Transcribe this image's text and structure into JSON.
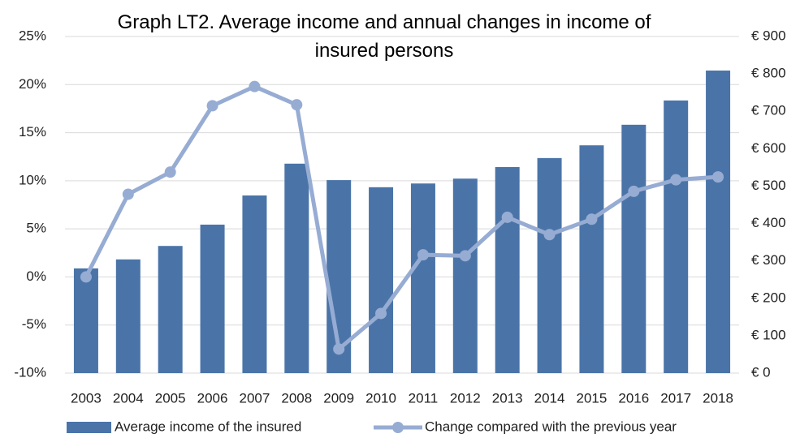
{
  "chart_data": {
    "type": "combo",
    "title": "Graph LT2. Average income and annual changes in income of insured persons",
    "categories": [
      "2003",
      "2004",
      "2005",
      "2006",
      "2007",
      "2008",
      "2009",
      "2010",
      "2011",
      "2012",
      "2013",
      "2014",
      "2015",
      "2016",
      "2017",
      "2018"
    ],
    "series": [
      {
        "name": "Average income of the insured",
        "type": "bar",
        "axis": "y2",
        "color": "#4a74a8",
        "values": [
          280,
          304,
          340,
          397,
          475,
          560,
          516,
          497,
          507,
          520,
          551,
          575,
          609,
          664,
          729,
          809
        ]
      },
      {
        "name": "Change compared with the previous year",
        "type": "line",
        "color": "#97acd3",
        "values": [
          0.0,
          8.6,
          10.9,
          17.8,
          19.8,
          17.9,
          -7.5,
          -3.8,
          2.3,
          2.2,
          6.2,
          4.4,
          6.0,
          8.9,
          10.1,
          10.4
        ]
      }
    ],
    "ylim": [
      -10,
      25
    ],
    "yticks": [
      {
        "value": -10,
        "label": "-10%"
      },
      {
        "value": -5,
        "label": "-5%"
      },
      {
        "value": 0,
        "label": "0%"
      },
      {
        "value": 5,
        "label": "5%"
      },
      {
        "value": 10,
        "label": "10%"
      },
      {
        "value": 15,
        "label": "15%"
      },
      {
        "value": 20,
        "label": "20%"
      },
      {
        "value": 25,
        "label": "25%"
      }
    ],
    "y2lim": [
      0,
      900
    ],
    "y2ticks": [
      {
        "value": 0,
        "label": "€ 0"
      },
      {
        "value": 100,
        "label": "€ 100"
      },
      {
        "value": 200,
        "label": "€ 200"
      },
      {
        "value": 300,
        "label": "€ 300"
      },
      {
        "value": 400,
        "label": "€ 400"
      },
      {
        "value": 500,
        "label": "€ 500"
      },
      {
        "value": 600,
        "label": "€ 600"
      },
      {
        "value": 700,
        "label": "€ 700"
      },
      {
        "value": 800,
        "label": "€ 800"
      },
      {
        "value": 900,
        "label": "€ 900"
      }
    ],
    "grid": true,
    "legend": "bottom"
  }
}
